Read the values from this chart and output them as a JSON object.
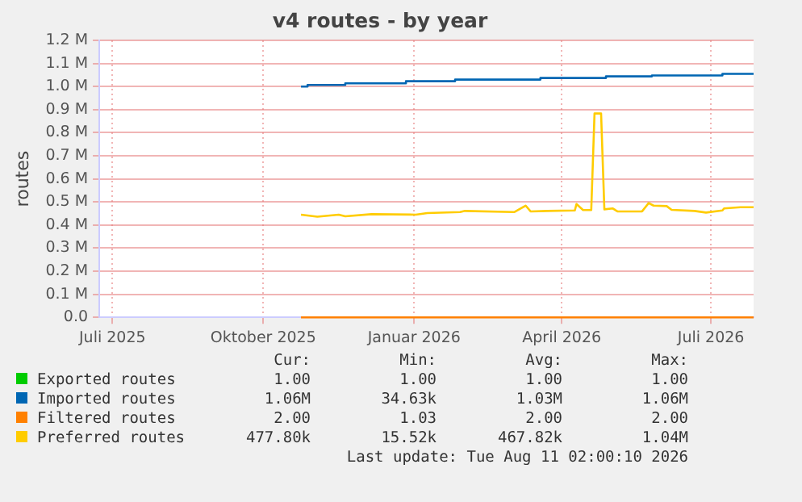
{
  "chart_data": {
    "type": "line",
    "title": "v4 routes - by year",
    "ylabel": "routes",
    "xlim": [
      "2025-07-08",
      "2026-08-11"
    ],
    "xticks": [
      {
        "value": "2025-07-16",
        "label": "Juli 2025"
      },
      {
        "value": "2025-10-16",
        "label": "Oktober 2025"
      },
      {
        "value": "2026-01-16",
        "label": "Januar 2026"
      },
      {
        "value": "2026-04-16",
        "label": "April 2026"
      },
      {
        "value": "2026-07-16",
        "label": "Juli 2026"
      }
    ],
    "ylim": [
      0,
      1200000
    ],
    "yticks": [
      {
        "value": 0,
        "label": "0.0"
      },
      {
        "value": 100000,
        "label": "0.1 M"
      },
      {
        "value": 200000,
        "label": "0.2 M"
      },
      {
        "value": 300000,
        "label": "0.3 M"
      },
      {
        "value": 400000,
        "label": "0.4 M"
      },
      {
        "value": 500000,
        "label": "0.5 M"
      },
      {
        "value": 600000,
        "label": "0.6 M"
      },
      {
        "value": 700000,
        "label": "0.7 M"
      },
      {
        "value": 800000,
        "label": "0.8 M"
      },
      {
        "value": 900000,
        "label": "0.9 M"
      },
      {
        "value": 1000000,
        "label": "1.0 M"
      },
      {
        "value": 1100000,
        "label": "1.1 M"
      },
      {
        "value": 1200000,
        "label": "1.2 M"
      }
    ],
    "grid": true,
    "legend": "bottom",
    "marker": "none",
    "line_style": "solid",
    "series": [
      {
        "name": "Exported routes",
        "color": "#00cc00"
      },
      {
        "name": "Imported routes",
        "color": "#0066b3",
        "x": [
          "2025-11-08",
          "2025-11-12",
          "2025-11-12",
          "2025-12-05",
          "2025-12-05",
          "2026-01-11",
          "2026-01-11",
          "2026-02-10",
          "2026-02-10",
          "2026-04-03",
          "2026-04-03",
          "2026-05-13",
          "2026-05-13",
          "2026-06-10",
          "2026-06-10",
          "2026-07-23",
          "2026-07-23",
          "2026-08-11"
        ],
        "values": [
          1000000,
          1000000,
          1007000,
          1007000,
          1014000,
          1014000,
          1023000,
          1023000,
          1030000,
          1030000,
          1037000,
          1037000,
          1044000,
          1044000,
          1048000,
          1048000,
          1055000,
          1055000
        ]
      },
      {
        "name": "Filtered routes",
        "color": "#ff8000",
        "x": [
          "2025-11-08",
          "2026-08-11"
        ],
        "values": [
          0,
          0
        ]
      },
      {
        "name": "Preferred routes",
        "color": "#ffcc00",
        "x": [
          "2025-11-08",
          "2025-11-18",
          "2025-12-01",
          "2025-12-05",
          "2025-12-21",
          "2026-01-17",
          "2026-01-24",
          "2026-02-13",
          "2026-02-16",
          "2026-03-18",
          "2026-03-25",
          "2026-03-28",
          "2026-04-07",
          "2026-04-24",
          "2026-04-25",
          "2026-04-29",
          "2026-05-04",
          "2026-05-06",
          "2026-05-10",
          "2026-05-12",
          "2026-05-17",
          "2026-05-20",
          "2026-06-04",
          "2026-06-08",
          "2026-06-11",
          "2026-06-19",
          "2026-06-22",
          "2026-07-06",
          "2026-07-13",
          "2026-07-23",
          "2026-07-24",
          "2026-08-03",
          "2026-08-11"
        ],
        "values": [
          445000,
          436000,
          445000,
          438000,
          447000,
          445000,
          452000,
          456000,
          461000,
          456000,
          484000,
          459000,
          461000,
          463000,
          491000,
          465000,
          465000,
          883000,
          883000,
          468000,
          472000,
          459000,
          459000,
          495000,
          484000,
          482000,
          466000,
          461000,
          454000,
          463000,
          472000,
          477000,
          477000
        ]
      }
    ],
    "annotations": [
      "Cur:",
      "Min:",
      "Avg:",
      "Max:",
      "1.00",
      "1.00",
      "1.00",
      "1.00",
      "1.06M",
      "34.63k",
      "1.03M",
      "1.06M",
      "2.00",
      "1.03",
      "2.00",
      "2.00",
      "477.80k",
      "15.52k",
      "467.82k",
      "1.04M",
      "Last update: Tue Aug 11 02:00:10 2026"
    ]
  }
}
